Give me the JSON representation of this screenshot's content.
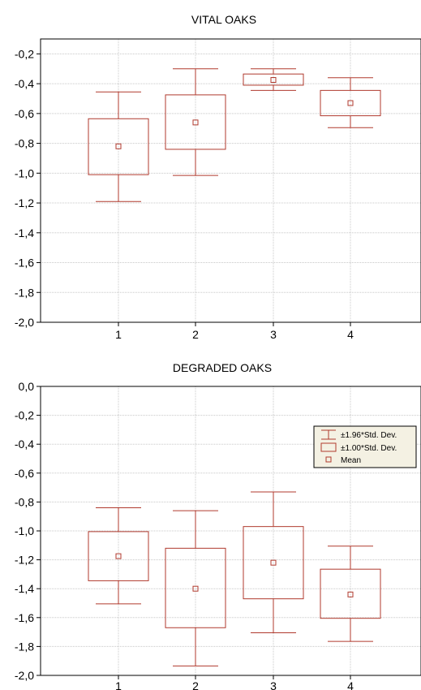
{
  "chart_data": [
    {
      "type": "box",
      "title": "VITAL OAKS",
      "xlabel": "",
      "ylabel": "",
      "categories": [
        "1",
        "2",
        "3",
        "4"
      ],
      "ylim": [
        -2.0,
        -0.1
      ],
      "yticks": [
        "-0,2",
        "-0,4",
        "-0,6",
        "-0,8",
        "-1,0",
        "-1,2",
        "-1,4",
        "-1,6",
        "-1,8",
        "-2,0"
      ],
      "ytick_values": [
        -0.2,
        -0.4,
        -0.6,
        -0.8,
        -1.0,
        -1.2,
        -1.4,
        -1.6,
        -1.8,
        -2.0
      ],
      "grid": true,
      "color": "#b03a2e",
      "boxes": [
        {
          "category": "1",
          "mean": -0.82,
          "sd1_low": -1.01,
          "sd1_high": -0.635,
          "sd196_low": -1.19,
          "sd196_high": -0.455
        },
        {
          "category": "2",
          "mean": -0.66,
          "sd1_low": -0.84,
          "sd1_high": -0.475,
          "sd196_low": -1.015,
          "sd196_high": -0.3
        },
        {
          "category": "3",
          "mean": -0.375,
          "sd1_low": -0.41,
          "sd1_high": -0.335,
          "sd196_low": -0.445,
          "sd196_high": -0.3
        },
        {
          "category": "4",
          "mean": -0.53,
          "sd1_low": -0.615,
          "sd1_high": -0.445,
          "sd196_low": -0.695,
          "sd196_high": -0.36
        }
      ]
    },
    {
      "type": "box",
      "title": "DEGRADED OAKS",
      "xlabel": "",
      "ylabel": "",
      "categories": [
        "1",
        "2",
        "3",
        "4"
      ],
      "ylim": [
        -2.0,
        0.0
      ],
      "yticks": [
        "0,0",
        "-0,2",
        "-0,4",
        "-0,6",
        "-0,8",
        "-1,0",
        "-1,2",
        "-1,4",
        "-1,6",
        "-1,8",
        "-2,0"
      ],
      "ytick_values": [
        0.0,
        -0.2,
        -0.4,
        -0.6,
        -0.8,
        -1.0,
        -1.2,
        -1.4,
        -1.6,
        -1.8,
        -2.0
      ],
      "grid": true,
      "color": "#b03a2e",
      "legend": {
        "placement": "top-right",
        "entries": [
          "±1.96*Std. Dev.",
          "±1.00*Std. Dev.",
          "Mean"
        ]
      },
      "boxes": [
        {
          "category": "1",
          "mean": -1.175,
          "sd1_low": -1.345,
          "sd1_high": -1.005,
          "sd196_low": -1.505,
          "sd196_high": -0.84
        },
        {
          "category": "2",
          "mean": -1.4,
          "sd1_low": -1.67,
          "sd1_high": -1.12,
          "sd196_low": -1.935,
          "sd196_high": -0.86
        },
        {
          "category": "3",
          "mean": -1.22,
          "sd1_low": -1.47,
          "sd1_high": -0.97,
          "sd196_low": -1.705,
          "sd196_high": -0.73
        },
        {
          "category": "4",
          "mean": -1.44,
          "sd1_low": -1.605,
          "sd1_high": -1.265,
          "sd196_low": -1.765,
          "sd196_high": -1.105
        }
      ]
    }
  ]
}
